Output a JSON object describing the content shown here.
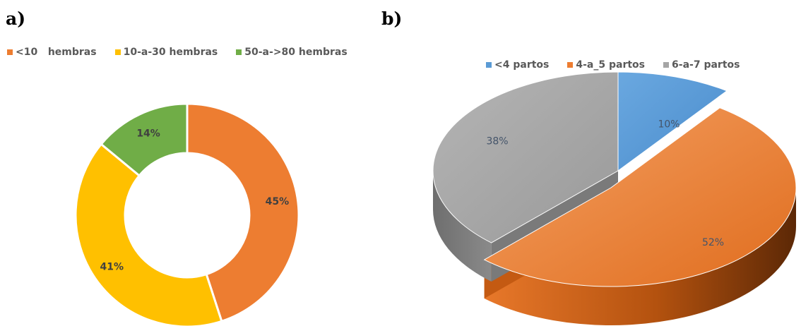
{
  "panels": {
    "a_label": "a)",
    "b_label": "b)"
  },
  "chart_data": [
    {
      "type": "pie",
      "variant": "donut",
      "title": "",
      "series": [
        {
          "name": "<10   hembras",
          "value": 45,
          "label": "45%",
          "color": "#ED7D31"
        },
        {
          "name": "10-a-30 hembras",
          "value": 41,
          "label": "41%",
          "color": "#FFC000"
        },
        {
          "name": "50-a->80 hembras",
          "value": 14,
          "label": "14%",
          "color": "#70AD47"
        }
      ],
      "legend": "top"
    },
    {
      "type": "pie",
      "variant": "3d-exploded",
      "title": "",
      "series": [
        {
          "name": "<4 partos",
          "value": 10,
          "label": "10%",
          "color": "#5B9BD5"
        },
        {
          "name": "4-a_5 partos",
          "value": 52,
          "label": "52%",
          "color": "#ED7D31"
        },
        {
          "name": "6-a-7 partos",
          "value": 38,
          "label": "38%",
          "color": "#A5A5A5"
        }
      ],
      "legend": "top"
    }
  ]
}
